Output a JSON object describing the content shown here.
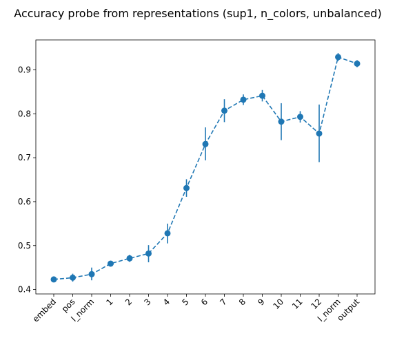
{
  "chart_data": {
    "type": "line",
    "title": "Accuracy probe from representations (sup1, n_colors, unbalanced)",
    "xlabel": "",
    "ylabel": "",
    "categories": [
      "embed",
      "pos",
      "l_norm",
      "1",
      "2",
      "3",
      "4",
      "5",
      "6",
      "7",
      "8",
      "9",
      "10",
      "11",
      "12",
      "l_norm",
      "output"
    ],
    "ylim": [
      0.39,
      0.968
    ],
    "yticks": [
      0.4,
      0.5,
      0.6,
      0.7,
      0.8,
      0.9
    ],
    "ytick_labels": [
      "0.4",
      "0.5",
      "0.6",
      "0.7",
      "0.8",
      "0.9"
    ],
    "grid": false,
    "marker": "circle",
    "line_style": "dashed",
    "color": "#1f77b4",
    "series": [
      {
        "values": [
          0.423,
          0.427,
          0.435,
          0.459,
          0.471,
          0.482,
          0.528,
          0.631,
          0.731,
          0.807,
          0.832,
          0.841,
          0.782,
          0.793,
          0.755,
          0.929,
          0.914
        ],
        "err_low": [
          0.419,
          0.418,
          0.421,
          0.455,
          0.463,
          0.462,
          0.505,
          0.611,
          0.694,
          0.781,
          0.82,
          0.828,
          0.74,
          0.78,
          0.69,
          0.92,
          0.906
        ],
        "err_high": [
          0.427,
          0.436,
          0.45,
          0.463,
          0.479,
          0.501,
          0.55,
          0.651,
          0.769,
          0.833,
          0.844,
          0.854,
          0.824,
          0.806,
          0.821,
          0.938,
          0.922
        ]
      }
    ]
  }
}
